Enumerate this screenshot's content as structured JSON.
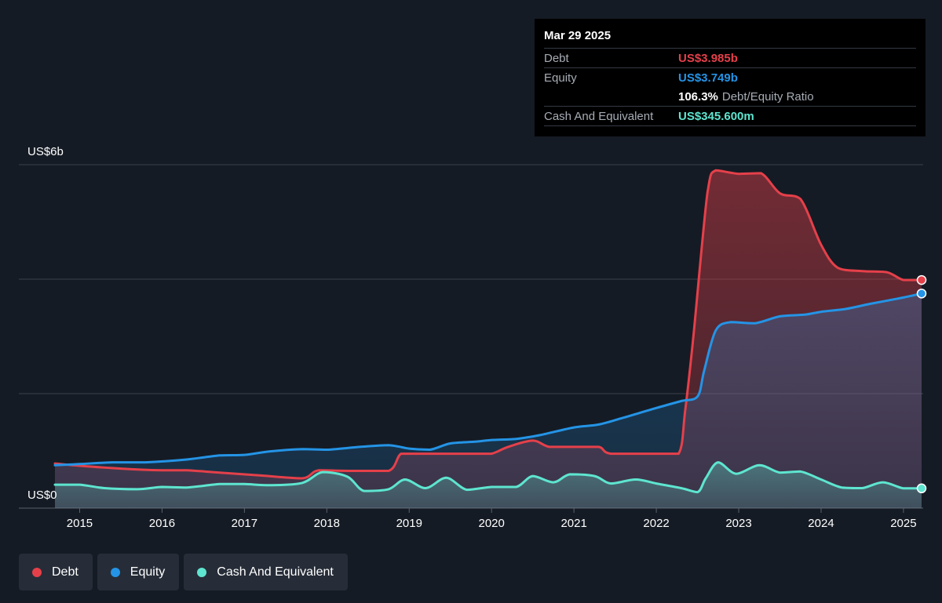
{
  "tooltip": {
    "date": "Mar 29 2025",
    "debt_label": "Debt",
    "debt_value": "US$3.985b",
    "equity_label": "Equity",
    "equity_value": "US$3.749b",
    "ratio_value": "106.3%",
    "ratio_label": "Debt/Equity Ratio",
    "cash_label": "Cash And Equivalent",
    "cash_value": "US$345.600m"
  },
  "legend": [
    {
      "label": "Debt",
      "color": "#e5404a"
    },
    {
      "label": "Equity",
      "color": "#2494e6"
    },
    {
      "label": "Cash And Equivalent",
      "color": "#5ee5d0"
    }
  ],
  "colors": {
    "background": "#151b24",
    "debt": "#e5404a",
    "equity": "#2494e6",
    "cash": "#5ee5d0",
    "grid": "#3a414c",
    "axis_text": "#ffffff"
  },
  "chart_data": {
    "type": "area",
    "y_top_label": "US$6b",
    "y_bottom_label": "US$0",
    "ylim": [
      0,
      6
    ],
    "xlim": [
      2014.7,
      2025.22
    ],
    "x_ticks": [
      "2015",
      "2016",
      "2017",
      "2018",
      "2019",
      "2020",
      "2021",
      "2022",
      "2023",
      "2024",
      "2025"
    ],
    "series": [
      {
        "name": "Debt",
        "x": [
          2014.7,
          2015.0,
          2015.5,
          2016.0,
          2016.3,
          2016.7,
          2017.2,
          2017.7,
          2017.9,
          2018.3,
          2018.75,
          2018.9,
          2019.1,
          2019.5,
          2019.8,
          2020.0,
          2020.2,
          2020.5,
          2020.7,
          2021.0,
          2021.3,
          2021.45,
          2022.0,
          2022.27,
          2022.35,
          2022.45,
          2022.62,
          2022.72,
          2023.0,
          2023.27,
          2023.5,
          2023.75,
          2024.0,
          2024.2,
          2024.5,
          2024.8,
          2025.0,
          2025.22
        ],
        "values": [
          0.78,
          0.74,
          0.69,
          0.66,
          0.66,
          0.62,
          0.57,
          0.52,
          0.66,
          0.65,
          0.65,
          0.95,
          0.95,
          0.95,
          0.95,
          0.95,
          1.07,
          1.18,
          1.07,
          1.07,
          1.07,
          0.95,
          0.95,
          0.95,
          1.7,
          3.0,
          5.5,
          5.9,
          5.84,
          5.85,
          5.5,
          5.4,
          4.6,
          4.2,
          4.14,
          4.12,
          3.985,
          3.985
        ]
      },
      {
        "name": "Equity",
        "x": [
          2014.7,
          2015.0,
          2015.4,
          2015.8,
          2016.3,
          2016.7,
          2017.0,
          2017.3,
          2017.7,
          2018.0,
          2018.4,
          2018.75,
          2019.0,
          2019.25,
          2019.5,
          2019.8,
          2020.0,
          2020.3,
          2020.6,
          2021.0,
          2021.3,
          2021.6,
          2022.0,
          2022.3,
          2022.5,
          2022.58,
          2022.72,
          2022.9,
          2023.2,
          2023.5,
          2023.8,
          2024.0,
          2024.3,
          2024.6,
          2025.0,
          2025.22
        ],
        "values": [
          0.75,
          0.77,
          0.8,
          0.8,
          0.85,
          0.92,
          0.93,
          0.99,
          1.03,
          1.02,
          1.07,
          1.1,
          1.04,
          1.02,
          1.13,
          1.16,
          1.19,
          1.21,
          1.28,
          1.41,
          1.46,
          1.58,
          1.75,
          1.87,
          1.95,
          2.4,
          3.1,
          3.25,
          3.23,
          3.35,
          3.38,
          3.43,
          3.48,
          3.57,
          3.68,
          3.749
        ]
      },
      {
        "name": "Cash And Equivalent",
        "x": [
          2014.7,
          2015.0,
          2015.3,
          2015.7,
          2016.0,
          2016.3,
          2016.7,
          2017.0,
          2017.3,
          2017.7,
          2017.95,
          2018.25,
          2018.45,
          2018.75,
          2018.95,
          2019.2,
          2019.45,
          2019.7,
          2020.0,
          2020.3,
          2020.5,
          2020.75,
          2020.95,
          2021.25,
          2021.45,
          2021.75,
          2022.0,
          2022.3,
          2022.5,
          2022.6,
          2022.75,
          2022.97,
          2023.25,
          2023.5,
          2023.75,
          2024.0,
          2024.25,
          2024.5,
          2024.75,
          2025.0,
          2025.22
        ],
        "values": [
          0.41,
          0.41,
          0.35,
          0.33,
          0.37,
          0.36,
          0.42,
          0.42,
          0.4,
          0.44,
          0.63,
          0.55,
          0.3,
          0.33,
          0.5,
          0.35,
          0.53,
          0.32,
          0.37,
          0.37,
          0.56,
          0.45,
          0.59,
          0.56,
          0.43,
          0.5,
          0.43,
          0.35,
          0.28,
          0.52,
          0.8,
          0.6,
          0.75,
          0.62,
          0.64,
          0.5,
          0.36,
          0.35,
          0.45,
          0.3456,
          0.3456
        ]
      }
    ]
  }
}
